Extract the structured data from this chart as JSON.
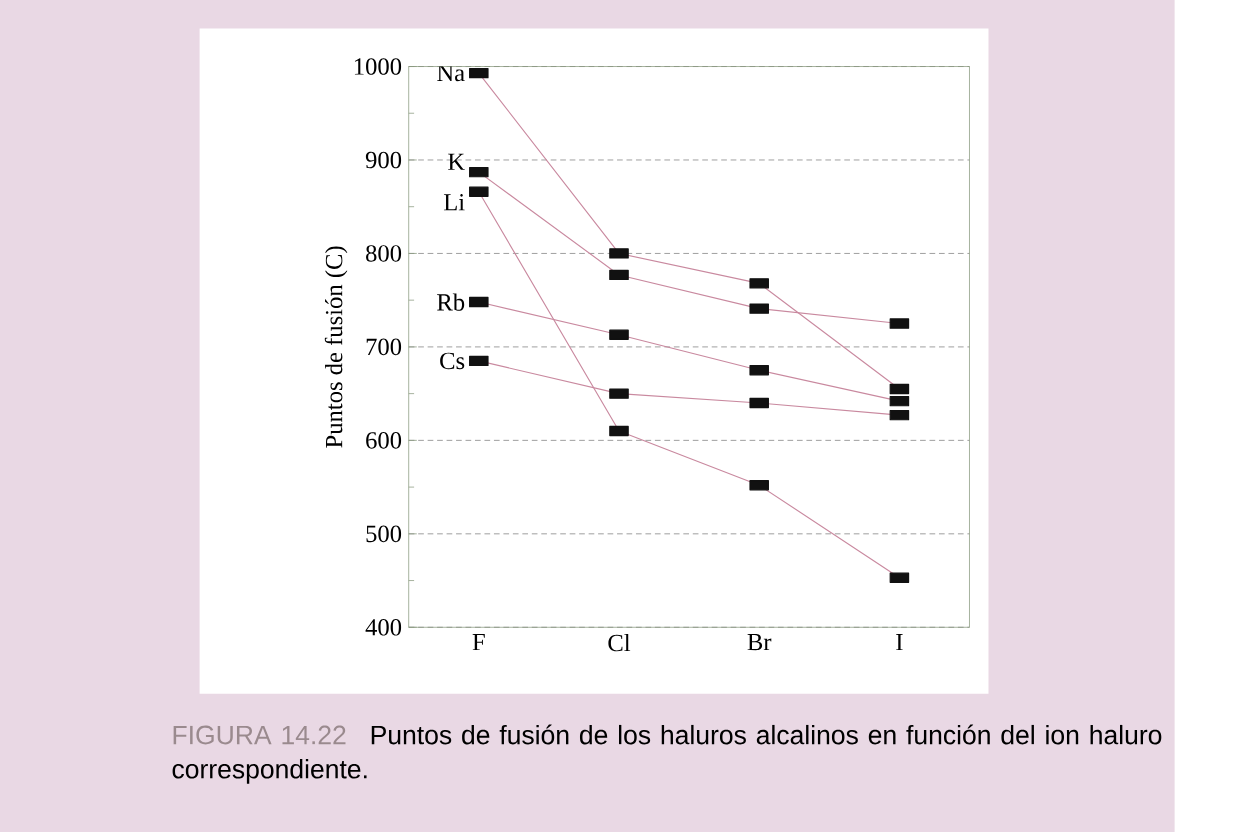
{
  "chart_data": {
    "type": "line",
    "ylabel": "Puntos de fusión (C)",
    "categories": [
      "F",
      "Cl",
      "Br",
      "I"
    ],
    "series": [
      {
        "name": "Na",
        "color": "#111111",
        "values": [
          993,
          800,
          768,
          655
        ]
      },
      {
        "name": "K",
        "color": "#111111",
        "values": [
          887,
          777,
          741,
          725
        ]
      },
      {
        "name": "Li",
        "color": "#111111",
        "values": [
          866,
          610,
          552,
          453
        ]
      },
      {
        "name": "Rb",
        "color": "#111111",
        "values": [
          748,
          713,
          675,
          642
        ]
      },
      {
        "name": "Cs",
        "color": "#111111",
        "values": [
          685,
          650,
          640,
          627
        ]
      }
    ],
    "ylim": [
      400,
      1000
    ],
    "yticks": [
      400,
      500,
      600,
      700,
      800,
      900,
      1000
    ],
    "grid": "y",
    "marker": "square",
    "annotations": [
      "FIGURA 14.22",
      "Puntos de fusión de los haluros alcalinos en función del ion haluro correspondiente."
    ]
  }
}
